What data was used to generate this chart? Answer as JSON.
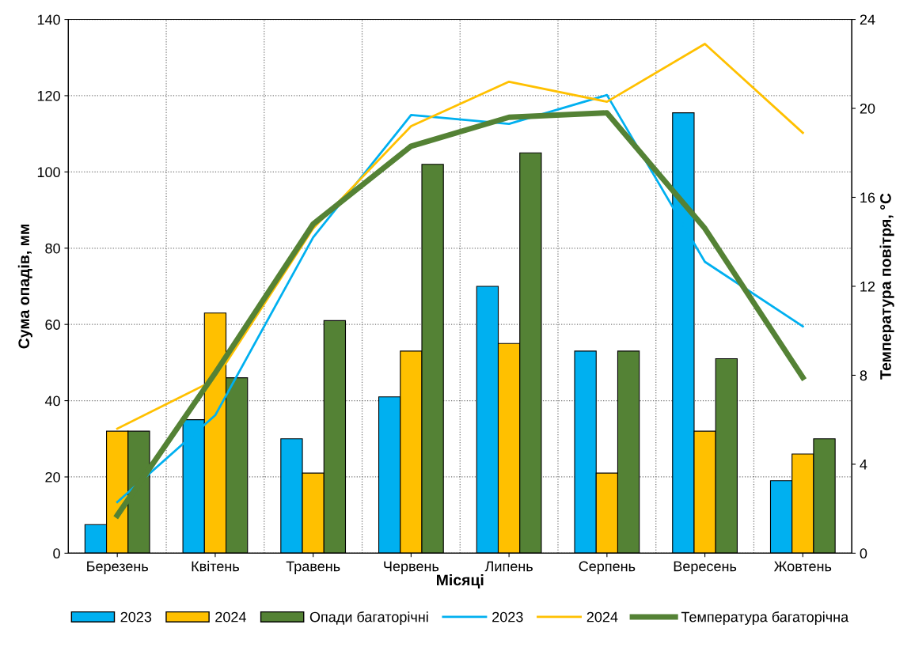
{
  "chart_data": {
    "type": "bar",
    "xlabel": "Місяці",
    "ylabel": "Сума опадів, мм",
    "y2label": "Температура повітря, °C",
    "categories": [
      "Березень",
      "Квітень",
      "Травень",
      "Червень",
      "Липень",
      "Серпень",
      "Вересень",
      "Жовтень"
    ],
    "series": [
      {
        "name": "2023",
        "color": "#00b0f0",
        "values": [
          7.5,
          35,
          30,
          41,
          70,
          53,
          115.5,
          19
        ]
      },
      {
        "name": "2024",
        "color": "#ffc000",
        "values": [
          32,
          63,
          21,
          53,
          55,
          21,
          32,
          26
        ]
      },
      {
        "name": "Опади багаторічні",
        "color": "#548235",
        "values": [
          32,
          46,
          61,
          102,
          105,
          53,
          51,
          30
        ]
      },
      {
        "name": "2023",
        "type": "line",
        "axis": "y2",
        "color": "#00b0f0",
        "values": [
          2.3,
          6.2,
          14.2,
          19.7,
          19.3,
          20.6,
          13.1,
          10.2
        ]
      },
      {
        "name": "2024",
        "type": "line",
        "axis": "y2",
        "color": "#ffc000",
        "values": [
          5.6,
          7.8,
          14.6,
          19.2,
          21.2,
          20.3,
          22.9,
          18.9
        ]
      },
      {
        "name": "Температура багаторічна",
        "type": "line",
        "axis": "y2",
        "color": "#548235",
        "values": [
          1.7,
          8.1,
          14.8,
          18.3,
          19.6,
          19.8,
          14.6,
          7.9
        ]
      }
    ],
    "ylim": [
      0,
      140
    ],
    "yticks": [
      0,
      20,
      40,
      60,
      80,
      100,
      120,
      140
    ],
    "y2lim": [
      0,
      24
    ],
    "y2ticks": [
      0,
      4,
      8,
      12,
      16,
      20,
      24
    ],
    "grid": true,
    "legend": "bottom",
    "marker": "none",
    "line_style": "solid"
  }
}
